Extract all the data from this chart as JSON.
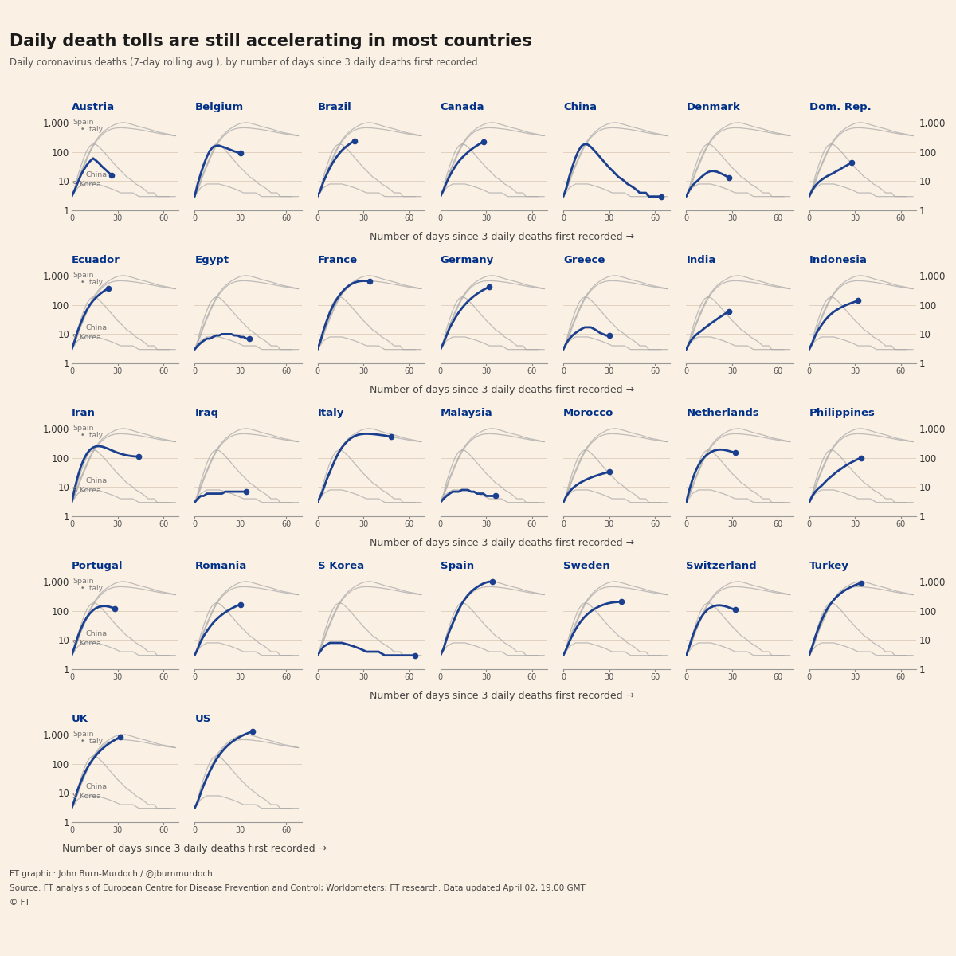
{
  "title": "Daily death tolls are still accelerating in most countries",
  "subtitle": "Daily coronavirus deaths (7-day rolling avg.), by number of days since 3 daily deaths first recorded",
  "xlabel": "Number of days since 3 daily deaths first recorded →",
  "footer1": "FT graphic: John Burn-Murdoch / @jburnmurdoch",
  "footer2": "Source: FT analysis of European Centre for Disease Prevention and Control; Worldometers; FT research. Data updated April 02, 19:00 GMT",
  "footer3": "© FT",
  "background_color": "#FAF0E4",
  "title_color": "#1a1a1a",
  "subtitle_color": "#555555",
  "country_title_color": "#003087",
  "ref_line_color": "#aaaaaa",
  "country_line_color": "#1a3f8f",
  "dot_color": "#1a3f8f",
  "grid_color": "#ddccbb",
  "ref_label_color": "#777777",
  "countries_rows": [
    [
      "Austria",
      "Belgium",
      "Brazil",
      "Canada",
      "China",
      "Denmark",
      "Dom. Rep."
    ],
    [
      "Ecuador",
      "Egypt",
      "France",
      "Germany",
      "Greece",
      "India",
      "Indonesia"
    ],
    [
      "Iran",
      "Iraq",
      "Italy",
      "Malaysia",
      "Morocco",
      "Netherlands",
      "Philippines"
    ],
    [
      "Portugal",
      "Romania",
      "S Korea",
      "Spain",
      "Sweden",
      "Switzerland",
      "Turkey"
    ],
    [
      "UK",
      "US"
    ]
  ],
  "ref_countries": {
    "Spain": {
      "x": [
        0,
        2,
        4,
        6,
        8,
        10,
        12,
        14,
        16,
        18,
        20,
        22,
        24,
        26,
        28,
        30,
        32,
        34,
        36,
        38,
        40,
        42,
        44,
        46,
        48,
        50,
        52,
        54,
        56,
        58,
        60,
        62,
        64,
        66,
        68
      ],
      "y": [
        3,
        5,
        11,
        21,
        37,
        66,
        110,
        174,
        250,
        340,
        440,
        540,
        640,
        740,
        840,
        920,
        970,
        990,
        960,
        900,
        840,
        780,
        720,
        680,
        640,
        600,
        560,
        520,
        480,
        450,
        430,
        410,
        390,
        370,
        350
      ]
    },
    "Italy": {
      "x": [
        0,
        2,
        4,
        6,
        8,
        10,
        12,
        14,
        16,
        18,
        20,
        22,
        24,
        26,
        28,
        30,
        32,
        34,
        36,
        38,
        40,
        42,
        44,
        46,
        48,
        50,
        52,
        54,
        56,
        58,
        60,
        62,
        64,
        66,
        68
      ],
      "y": [
        3,
        5,
        9,
        18,
        32,
        56,
        96,
        154,
        224,
        302,
        386,
        468,
        538,
        594,
        630,
        650,
        658,
        652,
        642,
        626,
        608,
        590,
        570,
        546,
        522,
        498,
        476,
        454,
        433,
        415,
        398,
        383,
        370,
        358,
        348
      ]
    },
    "S Korea": {
      "x": [
        0,
        4,
        8,
        12,
        16,
        20,
        24,
        28,
        32,
        36,
        40,
        44,
        48,
        52,
        56,
        60,
        64,
        68
      ],
      "y": [
        3,
        6,
        8,
        8,
        8,
        7,
        6,
        5,
        4,
        4,
        4,
        3,
        3,
        3,
        3,
        3,
        3,
        3
      ]
    },
    "China": {
      "x": [
        0,
        2,
        4,
        6,
        8,
        10,
        12,
        14,
        16,
        18,
        20,
        22,
        24,
        26,
        28,
        30,
        32,
        34,
        36,
        38,
        40,
        42,
        44,
        46,
        48,
        50,
        52,
        54,
        56,
        58,
        60,
        62,
        64
      ],
      "y": [
        3,
        6,
        15,
        32,
        64,
        112,
        160,
        184,
        176,
        146,
        114,
        88,
        66,
        50,
        38,
        29,
        23,
        18,
        14,
        12,
        10,
        8,
        7,
        6,
        5,
        4,
        4,
        4,
        3,
        3,
        3,
        3,
        3
      ]
    }
  },
  "country_data": {
    "Austria": {
      "x": [
        0,
        2,
        4,
        6,
        8,
        10,
        12,
        14,
        16,
        18,
        20,
        22,
        24,
        26
      ],
      "y": [
        3,
        5,
        9,
        16,
        25,
        36,
        48,
        60,
        50,
        40,
        31,
        25,
        20,
        16
      ]
    },
    "Belgium": {
      "x": [
        0,
        2,
        4,
        6,
        8,
        10,
        12,
        14,
        16,
        18,
        20,
        22,
        24,
        26,
        28,
        30
      ],
      "y": [
        3,
        8,
        18,
        37,
        68,
        110,
        145,
        160,
        162,
        150,
        138,
        126,
        114,
        104,
        96,
        90
      ]
    },
    "Brazil": {
      "x": [
        0,
        2,
        4,
        6,
        8,
        10,
        12,
        14,
        16,
        18,
        20,
        22,
        24
      ],
      "y": [
        3,
        5,
        10,
        17,
        28,
        43,
        62,
        85,
        112,
        140,
        170,
        202,
        235
      ]
    },
    "Canada": {
      "x": [
        0,
        2,
        4,
        6,
        8,
        10,
        12,
        14,
        16,
        18,
        20,
        22,
        24,
        26,
        28
      ],
      "y": [
        3,
        5,
        9,
        15,
        23,
        34,
        47,
        62,
        78,
        97,
        118,
        141,
        165,
        191,
        218
      ]
    },
    "China": {
      "x": [
        0,
        2,
        4,
        6,
        8,
        10,
        12,
        14,
        16,
        18,
        20,
        22,
        24,
        26,
        28,
        30,
        32,
        34,
        36,
        38,
        40,
        42,
        44,
        46,
        48,
        50,
        52,
        54,
        56,
        58,
        60,
        62,
        64
      ],
      "y": [
        3,
        6,
        15,
        32,
        64,
        112,
        160,
        184,
        176,
        146,
        114,
        88,
        66,
        50,
        38,
        29,
        23,
        18,
        14,
        12,
        10,
        8,
        7,
        6,
        5,
        4,
        4,
        4,
        3,
        3,
        3,
        3,
        3
      ]
    },
    "Denmark": {
      "x": [
        0,
        2,
        4,
        6,
        8,
        10,
        12,
        14,
        16,
        18,
        20,
        22,
        24,
        26,
        28
      ],
      "y": [
        3,
        5,
        7,
        9,
        11,
        14,
        17,
        20,
        22,
        22,
        21,
        19,
        17,
        15,
        13
      ]
    },
    "Dom. Rep.": {
      "x": [
        0,
        2,
        4,
        6,
        8,
        10,
        12,
        14,
        16,
        18,
        20,
        22,
        24,
        26,
        28
      ],
      "y": [
        3,
        5,
        7,
        9,
        11,
        13,
        15,
        17,
        19,
        22,
        25,
        29,
        33,
        38,
        44
      ]
    },
    "Ecuador": {
      "x": [
        0,
        2,
        4,
        6,
        8,
        10,
        12,
        14,
        16,
        18,
        20,
        22,
        24
      ],
      "y": [
        3,
        6,
        13,
        24,
        42,
        68,
        101,
        138,
        179,
        222,
        267,
        313,
        361
      ]
    },
    "Egypt": {
      "x": [
        0,
        2,
        4,
        6,
        8,
        10,
        12,
        14,
        16,
        18,
        20,
        22,
        24,
        26,
        28,
        30,
        32,
        34,
        36
      ],
      "y": [
        3,
        4,
        5,
        6,
        7,
        7,
        8,
        9,
        9,
        10,
        10,
        10,
        10,
        9,
        9,
        8,
        8,
        7,
        7
      ]
    },
    "France": {
      "x": [
        0,
        2,
        4,
        6,
        8,
        10,
        12,
        14,
        16,
        18,
        20,
        22,
        24,
        26,
        28,
        30,
        32,
        34
      ],
      "y": [
        3,
        6,
        14,
        28,
        53,
        90,
        139,
        200,
        270,
        348,
        428,
        504,
        567,
        612,
        640,
        652,
        648,
        630
      ]
    },
    "Germany": {
      "x": [
        0,
        2,
        4,
        6,
        8,
        10,
        12,
        14,
        16,
        18,
        20,
        22,
        24,
        26,
        28,
        30,
        32
      ],
      "y": [
        3,
        5,
        9,
        16,
        25,
        38,
        55,
        76,
        101,
        130,
        163,
        199,
        237,
        277,
        319,
        362,
        406
      ]
    },
    "Greece": {
      "x": [
        0,
        2,
        4,
        6,
        8,
        10,
        12,
        14,
        16,
        18,
        20,
        22,
        24,
        26,
        28,
        30
      ],
      "y": [
        3,
        5,
        7,
        9,
        11,
        13,
        15,
        17,
        17,
        17,
        15,
        13,
        11,
        10,
        9,
        9
      ]
    },
    "India": {
      "x": [
        0,
        2,
        4,
        6,
        8,
        10,
        12,
        14,
        16,
        18,
        20,
        22,
        24,
        26,
        28
      ],
      "y": [
        3,
        5,
        7,
        9,
        11,
        13,
        16,
        19,
        23,
        27,
        32,
        38,
        44,
        52,
        60
      ]
    },
    "Indonesia": {
      "x": [
        0,
        2,
        4,
        6,
        8,
        10,
        12,
        14,
        16,
        18,
        20,
        22,
        24,
        26,
        28,
        30,
        32
      ],
      "y": [
        3,
        5,
        9,
        14,
        20,
        28,
        37,
        47,
        57,
        67,
        77,
        87,
        97,
        107,
        117,
        127,
        137
      ]
    },
    "Iran": {
      "x": [
        0,
        2,
        4,
        6,
        8,
        10,
        12,
        14,
        16,
        18,
        20,
        22,
        24,
        26,
        28,
        30,
        32,
        34,
        36,
        38,
        40,
        42,
        44
      ],
      "y": [
        3,
        9,
        23,
        50,
        90,
        140,
        188,
        224,
        244,
        248,
        238,
        220,
        200,
        180,
        163,
        148,
        137,
        128,
        121,
        116,
        112,
        110,
        110
      ]
    },
    "Iraq": {
      "x": [
        0,
        2,
        4,
        6,
        8,
        10,
        12,
        14,
        16,
        18,
        20,
        22,
        24,
        26,
        28,
        30,
        32,
        34
      ],
      "y": [
        3,
        4,
        5,
        5,
        6,
        6,
        6,
        6,
        6,
        6,
        7,
        7,
        7,
        7,
        7,
        7,
        7,
        7
      ]
    },
    "Italy": {
      "x": [
        0,
        2,
        4,
        6,
        8,
        10,
        12,
        14,
        16,
        18,
        20,
        22,
        24,
        26,
        28,
        30,
        32,
        34,
        36,
        38,
        40,
        42,
        44,
        46,
        48
      ],
      "y": [
        3,
        5,
        9,
        18,
        32,
        56,
        96,
        154,
        224,
        302,
        386,
        468,
        538,
        594,
        630,
        650,
        658,
        652,
        642,
        626,
        608,
        590,
        570,
        546,
        522
      ]
    },
    "Malaysia": {
      "x": [
        0,
        2,
        4,
        6,
        8,
        10,
        12,
        14,
        16,
        18,
        20,
        22,
        24,
        26,
        28,
        30,
        32,
        34,
        36
      ],
      "y": [
        3,
        4,
        5,
        6,
        7,
        7,
        7,
        8,
        8,
        8,
        7,
        7,
        6,
        6,
        6,
        5,
        5,
        5,
        5
      ]
    },
    "Morocco": {
      "x": [
        0,
        2,
        4,
        6,
        8,
        10,
        12,
        14,
        16,
        18,
        20,
        22,
        24,
        26,
        28,
        30
      ],
      "y": [
        3,
        5,
        7,
        9,
        11,
        13,
        15,
        17,
        19,
        21,
        23,
        25,
        27,
        29,
        31,
        33
      ]
    },
    "Netherlands": {
      "x": [
        0,
        2,
        4,
        6,
        8,
        10,
        12,
        14,
        16,
        18,
        20,
        22,
        24,
        26,
        28,
        30,
        32
      ],
      "y": [
        3,
        8,
        18,
        34,
        55,
        80,
        106,
        132,
        155,
        173,
        185,
        190,
        188,
        180,
        170,
        158,
        147
      ]
    },
    "Philippines": {
      "x": [
        0,
        2,
        4,
        6,
        8,
        10,
        12,
        14,
        16,
        18,
        20,
        22,
        24,
        26,
        28,
        30,
        32,
        34
      ],
      "y": [
        3,
        5,
        7,
        9,
        11,
        14,
        18,
        22,
        27,
        33,
        39,
        46,
        54,
        62,
        71,
        80,
        90,
        100
      ]
    },
    "Portugal": {
      "x": [
        0,
        2,
        4,
        6,
        8,
        10,
        12,
        14,
        16,
        18,
        20,
        22,
        24,
        26,
        28
      ],
      "y": [
        3,
        6,
        13,
        24,
        40,
        60,
        82,
        104,
        123,
        136,
        143,
        144,
        139,
        130,
        120
      ]
    },
    "Romania": {
      "x": [
        0,
        2,
        4,
        6,
        8,
        10,
        12,
        14,
        16,
        18,
        20,
        22,
        24,
        26,
        28,
        30
      ],
      "y": [
        3,
        5,
        9,
        14,
        20,
        28,
        38,
        49,
        61,
        74,
        88,
        102,
        117,
        133,
        149,
        165
      ]
    },
    "S Korea": {
      "x": [
        0,
        4,
        8,
        12,
        16,
        20,
        24,
        28,
        32,
        36,
        40,
        44,
        48,
        52,
        56,
        60,
        64
      ],
      "y": [
        3,
        6,
        8,
        8,
        8,
        7,
        6,
        5,
        4,
        4,
        4,
        3,
        3,
        3,
        3,
        3,
        3
      ]
    },
    "Spain": {
      "x": [
        0,
        2,
        4,
        6,
        8,
        10,
        12,
        14,
        16,
        18,
        20,
        22,
        24,
        26,
        28,
        30,
        32,
        34
      ],
      "y": [
        3,
        5,
        11,
        21,
        37,
        66,
        110,
        174,
        250,
        340,
        440,
        540,
        640,
        740,
        840,
        920,
        970,
        990
      ]
    },
    "Sweden": {
      "x": [
        0,
        2,
        4,
        6,
        8,
        10,
        12,
        14,
        16,
        18,
        20,
        22,
        24,
        26,
        28,
        30,
        32,
        34,
        36,
        38
      ],
      "y": [
        3,
        5,
        9,
        15,
        23,
        34,
        47,
        62,
        78,
        95,
        112,
        128,
        144,
        158,
        171,
        182,
        190,
        196,
        199,
        200
      ]
    },
    "Switzerland": {
      "x": [
        0,
        2,
        4,
        6,
        8,
        10,
        12,
        14,
        16,
        18,
        20,
        22,
        24,
        26,
        28,
        30,
        32
      ],
      "y": [
        3,
        6,
        13,
        24,
        40,
        62,
        86,
        110,
        129,
        143,
        151,
        153,
        148,
        139,
        128,
        117,
        107
      ]
    },
    "Turkey": {
      "x": [
        0,
        2,
        4,
        6,
        8,
        10,
        12,
        14,
        16,
        18,
        20,
        22,
        24,
        26,
        28,
        30,
        32,
        34
      ],
      "y": [
        3,
        6,
        13,
        25,
        46,
        77,
        119,
        171,
        231,
        298,
        370,
        444,
        518,
        592,
        666,
        740,
        814,
        888
      ]
    },
    "UK": {
      "x": [
        0,
        2,
        4,
        6,
        8,
        10,
        12,
        14,
        16,
        18,
        20,
        22,
        24,
        26,
        28,
        30,
        32
      ],
      "y": [
        3,
        6,
        13,
        24,
        42,
        68,
        102,
        144,
        194,
        252,
        318,
        390,
        467,
        548,
        633,
        722,
        815
      ]
    },
    "US": {
      "x": [
        0,
        2,
        4,
        6,
        8,
        10,
        12,
        14,
        16,
        18,
        20,
        22,
        24,
        26,
        28,
        30,
        32,
        34,
        36,
        38
      ],
      "y": [
        3,
        5,
        10,
        19,
        33,
        55,
        88,
        133,
        190,
        259,
        340,
        430,
        528,
        629,
        734,
        840,
        946,
        1052,
        1158,
        1250
      ]
    }
  }
}
